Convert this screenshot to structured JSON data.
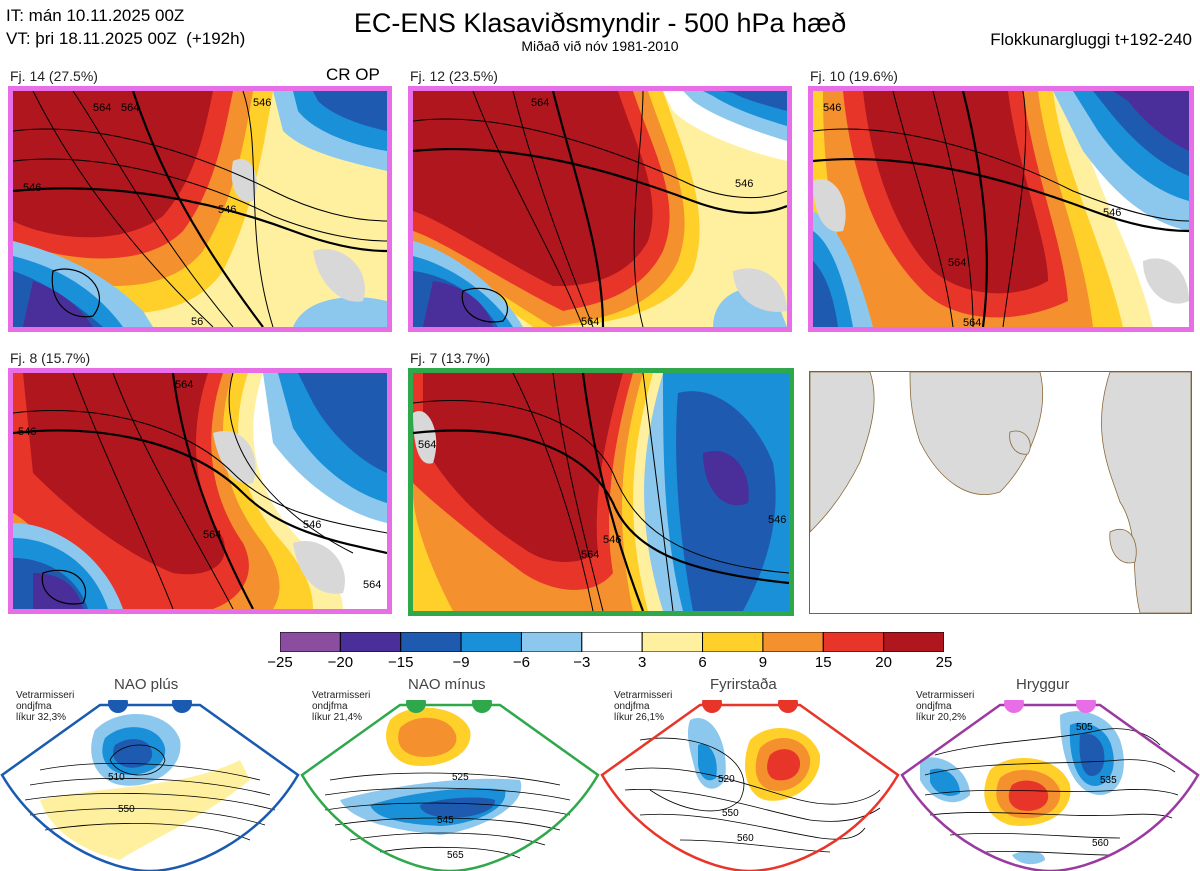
{
  "header": {
    "init_line": "IT: mán 10.11.2025 00Z",
    "valid_line": "VT: þri 18.11.2025 00Z  (+192h)",
    "title": "EC-ENS Klasaviðsmyndir - 500 hPa hæð",
    "subtitle": "Miðað við nóv 1981-2010",
    "window": "Flokkunargluggi t+192-240"
  },
  "clusters": [
    {
      "label": "Fj. 14 (27.5%)",
      "tag": "CR OP",
      "border": "#e86ee8"
    },
    {
      "label": "Fj. 12 (23.5%)",
      "tag": "",
      "border": "#e86ee8"
    },
    {
      "label": "Fj. 10 (19.6%)",
      "tag": "",
      "border": "#e86ee8"
    },
    {
      "label": "Fj. 8 (15.7%)",
      "tag": "",
      "border": "#e86ee8"
    },
    {
      "label": "Fj. 7 (13.7%)",
      "tag": "",
      "border": "#2ea84a"
    }
  ],
  "contour_labels": {
    "p1": [
      "546",
      "546",
      "564",
      "564",
      "546",
      "56"
    ],
    "p2": [
      "546",
      "564",
      "564"
    ],
    "p3": [
      "546",
      "546",
      "564",
      "564"
    ],
    "p4": [
      "546",
      "564",
      "546",
      "564",
      "564"
    ],
    "p5": [
      "564",
      "564",
      "546",
      "546"
    ]
  },
  "colorbar": {
    "ticks": [
      "−25",
      "−20",
      "−15",
      "−9",
      "−6",
      "−3",
      "3",
      "6",
      "9",
      "15",
      "20",
      "25"
    ],
    "colors": [
      "#8a4da0",
      "#4a2e9a",
      "#1e5ab0",
      "#1a90d8",
      "#8cc8ee",
      "#ffffff",
      "#fff0a0",
      "#ffd02a",
      "#f5902e",
      "#e8352a",
      "#b0161e"
    ]
  },
  "regimes": [
    {
      "title": "NAO plús",
      "note": [
        "Vetrarmisseri",
        "ondjfma",
        "líkur 32,3%"
      ],
      "color": "#1a5ab0",
      "contours": [
        "510",
        "550"
      ]
    },
    {
      "title": "NAO mínus",
      "note": [
        "Vetrarmisseri",
        "ondjfma",
        "líkur 21,4%"
      ],
      "color": "#2ea84a",
      "contours": [
        "525",
        "545",
        "565"
      ]
    },
    {
      "title": "Fyrirstaða",
      "note": [
        "Vetrarmisseri",
        "ondjfma",
        "líkur 26,1%"
      ],
      "color": "#e8352a",
      "contours": [
        "520",
        "550",
        "560"
      ]
    },
    {
      "title": "Hryggur",
      "note": [
        "Vetrarmisseri",
        "ondjfma",
        "líkur 20,2%"
      ],
      "color": "#e86ee8",
      "contours": [
        "505",
        "535",
        "560"
      ]
    }
  ]
}
